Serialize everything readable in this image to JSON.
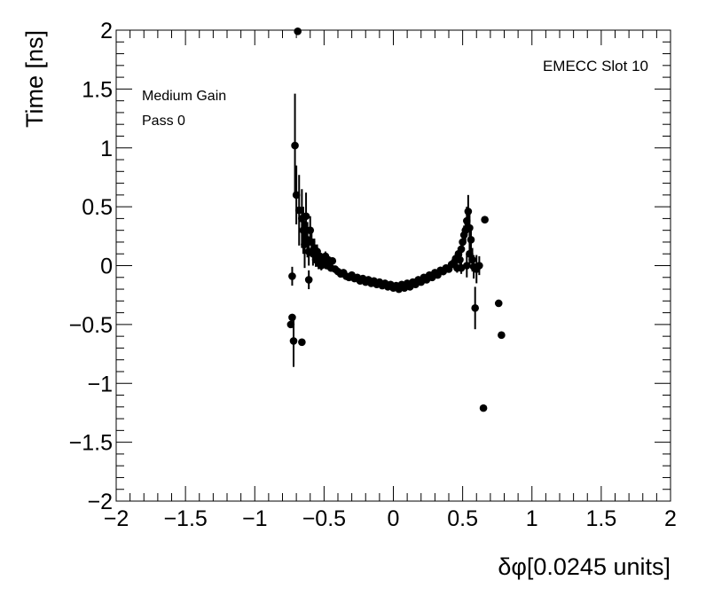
{
  "chart_data": {
    "type": "scatter",
    "xlabel": "δφ[0.0245 units]",
    "ylabel": "Time [ns]",
    "xlim": [
      -2,
      2
    ],
    "ylim": [
      -2,
      2
    ],
    "x_ticks": [
      -2,
      -1.5,
      -1,
      -0.5,
      0,
      0.5,
      1,
      1.5,
      2
    ],
    "y_ticks": [
      -2,
      -1.5,
      -1,
      -0.5,
      0,
      0.5,
      1,
      1.5,
      2
    ],
    "x_tick_labels": [
      "−2",
      "−1.5",
      "−1",
      "−0.5",
      "0",
      "0.5",
      "1",
      "1.5",
      "2"
    ],
    "y_tick_labels": [
      "−2",
      "−1.5",
      "−1",
      "−0.5",
      "0",
      "0.5",
      "1",
      "1.5",
      "2"
    ],
    "grid": false,
    "annotations": {
      "top_right": "EMECC Slot 10",
      "gain": "Medium Gain",
      "pass": "Pass 0"
    },
    "points": [
      {
        "x": -0.69,
        "y": 1.99,
        "err": 0
      },
      {
        "x": -0.71,
        "y": 1.02,
        "err": 0.44
      },
      {
        "x": -0.7,
        "y": 0.6,
        "err": 0.25
      },
      {
        "x": -0.68,
        "y": 0.47,
        "err": 0.3
      },
      {
        "x": -0.66,
        "y": 0.4,
        "err": 0.25
      },
      {
        "x": -0.63,
        "y": 0.42,
        "err": 0.2
      },
      {
        "x": -0.65,
        "y": 0.3,
        "err": 0.2
      },
      {
        "x": -0.64,
        "y": 0.18,
        "err": 0.2
      },
      {
        "x": -0.62,
        "y": 0.22,
        "err": 0.15
      },
      {
        "x": -0.61,
        "y": 0.12,
        "err": 0.12
      },
      {
        "x": -0.6,
        "y": 0.3,
        "err": 0.12
      },
      {
        "x": -0.59,
        "y": 0.2,
        "err": 0.1
      },
      {
        "x": -0.58,
        "y": 0.1,
        "err": 0.1
      },
      {
        "x": -0.57,
        "y": 0.15,
        "err": 0.08
      },
      {
        "x": -0.56,
        "y": 0.05,
        "err": 0.06
      },
      {
        "x": -0.55,
        "y": 0.12,
        "err": 0.06
      },
      {
        "x": -0.54,
        "y": 0.02,
        "err": 0.05
      },
      {
        "x": -0.53,
        "y": 0.08,
        "err": 0.05
      },
      {
        "x": -0.52,
        "y": 0.0,
        "err": 0.04
      },
      {
        "x": -0.51,
        "y": 0.06,
        "err": 0.04
      },
      {
        "x": -0.5,
        "y": 0.03,
        "err": 0.04
      },
      {
        "x": -0.49,
        "y": 0.08,
        "err": 0.04
      },
      {
        "x": -0.48,
        "y": 0.0,
        "err": 0.03
      },
      {
        "x": -0.47,
        "y": 0.05,
        "err": 0.03
      },
      {
        "x": -0.46,
        "y": 0.02,
        "err": 0.03
      },
      {
        "x": -0.45,
        "y": -0.02,
        "err": 0.03
      },
      {
        "x": -0.44,
        "y": 0.04,
        "err": 0.03
      },
      {
        "x": -0.42,
        "y": -0.03,
        "err": 0.03
      },
      {
        "x": -0.4,
        "y": -0.05,
        "err": 0.02
      },
      {
        "x": -0.38,
        "y": -0.07,
        "err": 0.02
      },
      {
        "x": -0.36,
        "y": -0.06,
        "err": 0.02
      },
      {
        "x": -0.34,
        "y": -0.09,
        "err": 0.02
      },
      {
        "x": -0.32,
        "y": -0.1,
        "err": 0.02
      },
      {
        "x": -0.3,
        "y": -0.08,
        "err": 0.02
      },
      {
        "x": -0.28,
        "y": -0.11,
        "err": 0.02
      },
      {
        "x": -0.26,
        "y": -0.1,
        "err": 0.02
      },
      {
        "x": -0.24,
        "y": -0.13,
        "err": 0.02
      },
      {
        "x": -0.22,
        "y": -0.11,
        "err": 0.02
      },
      {
        "x": -0.2,
        "y": -0.14,
        "err": 0.02
      },
      {
        "x": -0.18,
        "y": -0.12,
        "err": 0.02
      },
      {
        "x": -0.16,
        "y": -0.15,
        "err": 0.02
      },
      {
        "x": -0.14,
        "y": -0.13,
        "err": 0.02
      },
      {
        "x": -0.12,
        "y": -0.16,
        "err": 0.02
      },
      {
        "x": -0.1,
        "y": -0.14,
        "err": 0.02
      },
      {
        "x": -0.08,
        "y": -0.17,
        "err": 0.02
      },
      {
        "x": -0.06,
        "y": -0.15,
        "err": 0.02
      },
      {
        "x": -0.04,
        "y": -0.18,
        "err": 0.02
      },
      {
        "x": -0.02,
        "y": -0.16,
        "err": 0.02
      },
      {
        "x": 0.0,
        "y": -0.19,
        "err": 0.02
      },
      {
        "x": 0.02,
        "y": -0.17,
        "err": 0.02
      },
      {
        "x": 0.04,
        "y": -0.2,
        "err": 0.02
      },
      {
        "x": 0.06,
        "y": -0.16,
        "err": 0.02
      },
      {
        "x": 0.08,
        "y": -0.19,
        "err": 0.02
      },
      {
        "x": 0.1,
        "y": -0.15,
        "err": 0.02
      },
      {
        "x": 0.12,
        "y": -0.18,
        "err": 0.02
      },
      {
        "x": 0.14,
        "y": -0.14,
        "err": 0.02
      },
      {
        "x": 0.16,
        "y": -0.16,
        "err": 0.02
      },
      {
        "x": 0.18,
        "y": -0.12,
        "err": 0.02
      },
      {
        "x": 0.2,
        "y": -0.14,
        "err": 0.02
      },
      {
        "x": 0.22,
        "y": -0.1,
        "err": 0.02
      },
      {
        "x": 0.24,
        "y": -0.12,
        "err": 0.02
      },
      {
        "x": 0.26,
        "y": -0.08,
        "err": 0.02
      },
      {
        "x": 0.28,
        "y": -0.1,
        "err": 0.02
      },
      {
        "x": 0.3,
        "y": -0.06,
        "err": 0.02
      },
      {
        "x": 0.32,
        "y": -0.08,
        "err": 0.02
      },
      {
        "x": 0.34,
        "y": -0.04,
        "err": 0.02
      },
      {
        "x": 0.36,
        "y": -0.05,
        "err": 0.03
      },
      {
        "x": 0.38,
        "y": -0.02,
        "err": 0.03
      },
      {
        "x": 0.4,
        "y": -0.03,
        "err": 0.03
      },
      {
        "x": 0.42,
        "y": 0.01,
        "err": 0.03
      },
      {
        "x": 0.44,
        "y": 0.03,
        "err": 0.04
      },
      {
        "x": 0.45,
        "y": 0.06,
        "err": 0.04
      },
      {
        "x": 0.46,
        "y": -0.02,
        "err": 0.04
      },
      {
        "x": 0.47,
        "y": 0.1,
        "err": 0.05
      },
      {
        "x": 0.48,
        "y": 0.05,
        "err": 0.05
      },
      {
        "x": 0.49,
        "y": 0.14,
        "err": 0.06
      },
      {
        "x": 0.5,
        "y": 0.2,
        "err": 0.07
      },
      {
        "x": 0.51,
        "y": 0.26,
        "err": 0.08
      },
      {
        "x": 0.52,
        "y": 0.3,
        "err": 0.1
      },
      {
        "x": 0.53,
        "y": 0.38,
        "err": 0.12
      },
      {
        "x": 0.54,
        "y": 0.46,
        "err": 0.14
      },
      {
        "x": 0.55,
        "y": 0.32,
        "err": 0.12
      },
      {
        "x": 0.56,
        "y": 0.22,
        "err": 0.1
      },
      {
        "x": 0.53,
        "y": 0.0,
        "err": 0.1
      },
      {
        "x": 0.55,
        "y": 0.1,
        "err": 0.1
      },
      {
        "x": 0.57,
        "y": 0.05,
        "err": 0.1
      },
      {
        "x": 0.58,
        "y": -0.01,
        "err": 0.1
      },
      {
        "x": 0.59,
        "y": -0.36,
        "err": 0.18
      },
      {
        "x": 0.6,
        "y": -0.03,
        "err": 0.12
      },
      {
        "x": 0.62,
        "y": 0.0,
        "err": 0.08
      },
      {
        "x": 0.49,
        "y": -0.02,
        "err": 0.05
      },
      {
        "x": 0.65,
        "y": -1.21,
        "err": 0
      },
      {
        "x": 0.66,
        "y": 0.39,
        "err": 0
      },
      {
        "x": 0.76,
        "y": -0.32,
        "err": 0
      },
      {
        "x": 0.78,
        "y": -0.59,
        "err": 0
      },
      {
        "x": -0.74,
        "y": -0.5,
        "err": 0
      },
      {
        "x": -0.73,
        "y": -0.44,
        "err": 0
      },
      {
        "x": -0.72,
        "y": -0.64,
        "err": 0.22
      },
      {
        "x": -0.73,
        "y": -0.09,
        "err": 0.08
      },
      {
        "x": -0.66,
        "y": -0.65,
        "err": 0
      },
      {
        "x": -0.61,
        "y": -0.12,
        "err": 0.08
      }
    ]
  }
}
